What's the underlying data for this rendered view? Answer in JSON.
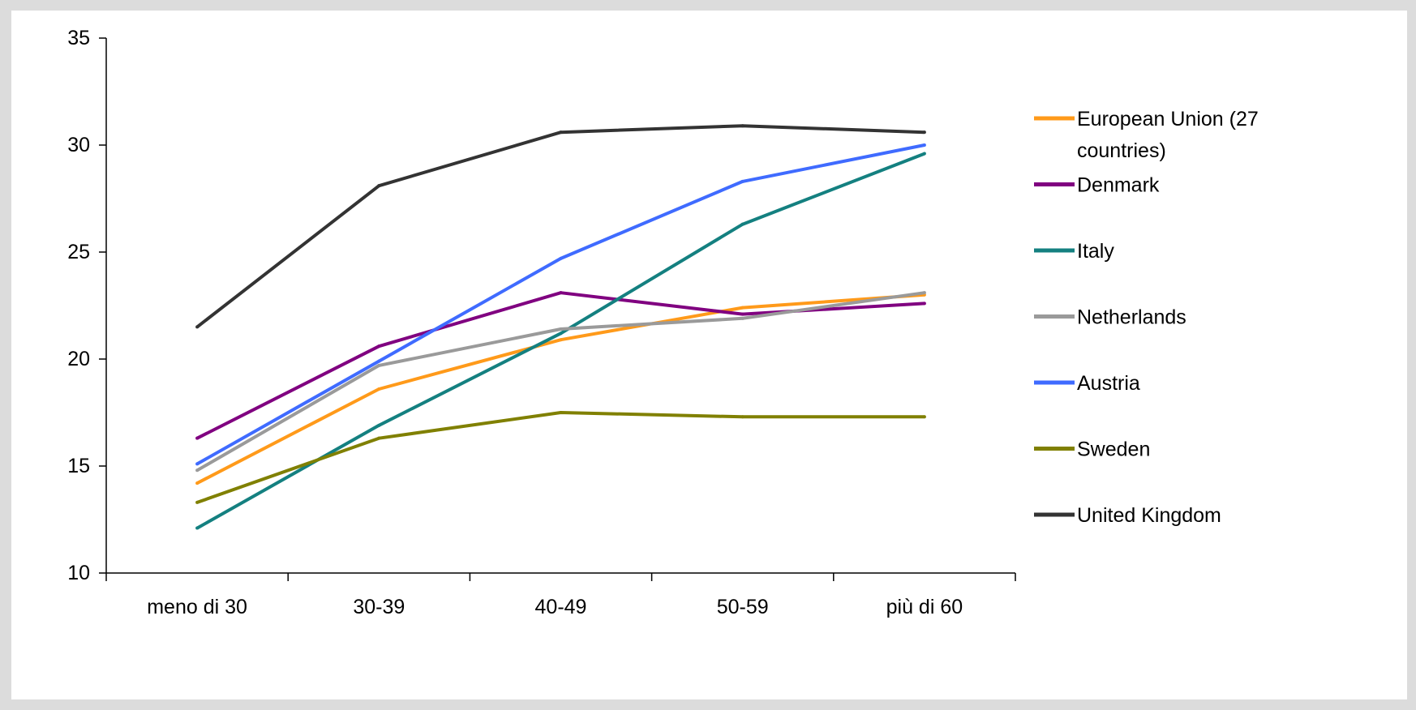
{
  "chart_data": {
    "type": "line",
    "title": "",
    "xlabel": "",
    "ylabel": "",
    "categories": [
      "meno di 30",
      "30-39",
      "40-49",
      "50-59",
      "più di 60"
    ],
    "ylim": [
      10,
      35
    ],
    "yticks": [
      10,
      15,
      20,
      25,
      30,
      35
    ],
    "grid": false,
    "legend_position": "right",
    "series": [
      {
        "name": "European Union (27 countries)",
        "legend_lines": [
          "European Union (27",
          "countries)"
        ],
        "color": "#ff9a1a",
        "values": [
          14.2,
          18.6,
          20.9,
          22.4,
          23.0
        ]
      },
      {
        "name": "Denmark",
        "legend_lines": [
          "Denmark"
        ],
        "color": "#800080",
        "values": [
          16.3,
          20.6,
          23.1,
          22.1,
          22.6
        ]
      },
      {
        "name": "Italy",
        "legend_lines": [
          "Italy"
        ],
        "color": "#148080",
        "values": [
          12.1,
          16.9,
          21.2,
          26.3,
          29.6
        ]
      },
      {
        "name": "Netherlands",
        "legend_lines": [
          "Netherlands"
        ],
        "color": "#9a9a9a",
        "values": [
          14.8,
          19.7,
          21.4,
          21.9,
          23.1
        ]
      },
      {
        "name": "Austria",
        "legend_lines": [
          "Austria"
        ],
        "color": "#3f6bff",
        "values": [
          15.1,
          19.9,
          24.7,
          28.3,
          30.0
        ]
      },
      {
        "name": "Sweden",
        "legend_lines": [
          "Sweden"
        ],
        "color": "#808000",
        "values": [
          13.3,
          16.3,
          17.5,
          17.3,
          17.3
        ]
      },
      {
        "name": "United Kingdom",
        "legend_lines": [
          "United Kingdom"
        ],
        "color": "#333333",
        "values": [
          21.5,
          28.1,
          30.6,
          30.9,
          30.6
        ]
      }
    ]
  }
}
